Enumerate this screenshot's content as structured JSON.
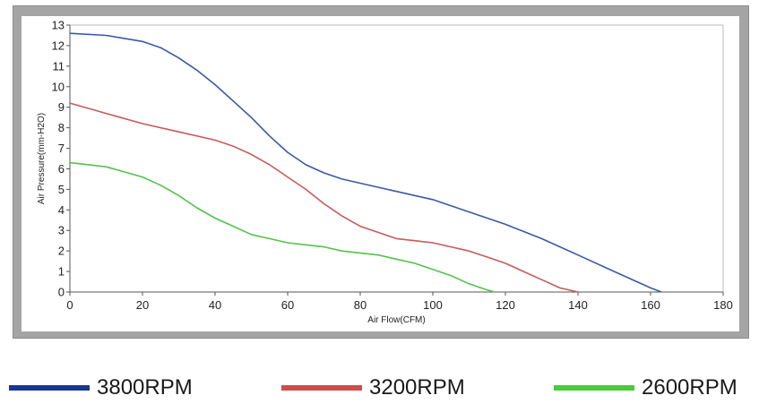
{
  "chart_data": {
    "type": "line",
    "xlabel": "Air Flow(CFM)",
    "ylabel": "Air Pressure(mm-H2O)",
    "xlim": [
      0,
      180
    ],
    "ylim": [
      0,
      13
    ],
    "xticks": [
      0,
      20,
      40,
      60,
      80,
      100,
      120,
      140,
      160,
      180
    ],
    "yticks": [
      0,
      1,
      2,
      3,
      4,
      5,
      6,
      7,
      8,
      9,
      10,
      11,
      12,
      13
    ],
    "grid": false,
    "legend_position": "bottom",
    "series": [
      {
        "name": "3800RPM",
        "color": "#3a5aa6",
        "legend_color": "#1c3590",
        "x": [
          0,
          10,
          20,
          25,
          30,
          35,
          40,
          45,
          50,
          55,
          60,
          65,
          70,
          75,
          80,
          85,
          90,
          95,
          100,
          105,
          110,
          115,
          120,
          130,
          140,
          150,
          160,
          163
        ],
        "y": [
          12.6,
          12.5,
          12.2,
          11.9,
          11.4,
          10.8,
          10.1,
          9.3,
          8.5,
          7.6,
          6.8,
          6.2,
          5.8,
          5.5,
          5.3,
          5.1,
          4.9,
          4.7,
          4.5,
          4.2,
          3.9,
          3.6,
          3.3,
          2.6,
          1.8,
          1.0,
          0.2,
          0
        ]
      },
      {
        "name": "3200RPM",
        "color": "#c9595a",
        "legend_color": "#cc4e4e",
        "x": [
          0,
          10,
          20,
          30,
          40,
          45,
          50,
          55,
          60,
          65,
          70,
          75,
          80,
          85,
          90,
          95,
          100,
          105,
          110,
          115,
          120,
          125,
          130,
          135,
          140
        ],
        "y": [
          9.2,
          8.7,
          8.2,
          7.8,
          7.4,
          7.1,
          6.7,
          6.2,
          5.6,
          5.0,
          4.3,
          3.7,
          3.2,
          2.9,
          2.6,
          2.5,
          2.4,
          2.2,
          2.0,
          1.7,
          1.4,
          1.0,
          0.6,
          0.2,
          0
        ]
      },
      {
        "name": "2600RPM",
        "color": "#53c34a",
        "legend_color": "#4cc93f",
        "x": [
          0,
          10,
          20,
          25,
          30,
          35,
          40,
          45,
          50,
          55,
          60,
          65,
          70,
          75,
          80,
          85,
          90,
          95,
          100,
          105,
          110,
          115,
          117
        ],
        "y": [
          6.3,
          6.1,
          5.6,
          5.2,
          4.7,
          4.1,
          3.6,
          3.2,
          2.8,
          2.6,
          2.4,
          2.3,
          2.2,
          2.0,
          1.9,
          1.8,
          1.6,
          1.4,
          1.1,
          0.8,
          0.4,
          0.1,
          0
        ]
      }
    ]
  }
}
